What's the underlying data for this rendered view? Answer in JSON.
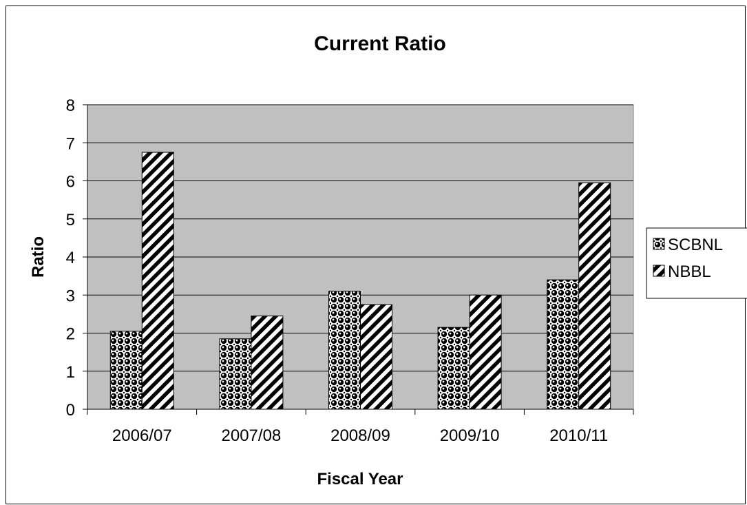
{
  "chart_data": {
    "type": "bar",
    "title": "Current Ratio",
    "xlabel": "Fiscal Year",
    "ylabel": "Ratio",
    "categories": [
      "2006/07",
      "2007/08",
      "2008/09",
      "2009/10",
      "2010/11"
    ],
    "series": [
      {
        "name": "SCBNL",
        "values": [
          2.05,
          1.85,
          3.1,
          2.15,
          3.4
        ],
        "pattern": "dots"
      },
      {
        "name": "NBBL",
        "values": [
          6.75,
          2.45,
          2.75,
          3.0,
          5.95
        ],
        "pattern": "diagonal-stripes"
      }
    ],
    "ylim": [
      0,
      8
    ],
    "yticks": [
      0,
      1,
      2,
      3,
      4,
      5,
      6,
      7,
      8
    ],
    "grid": true,
    "legend": "right",
    "colors": {
      "plot_background": "#c0c0c0",
      "bar_fill": "#ffffff",
      "ink": "#000000"
    }
  }
}
